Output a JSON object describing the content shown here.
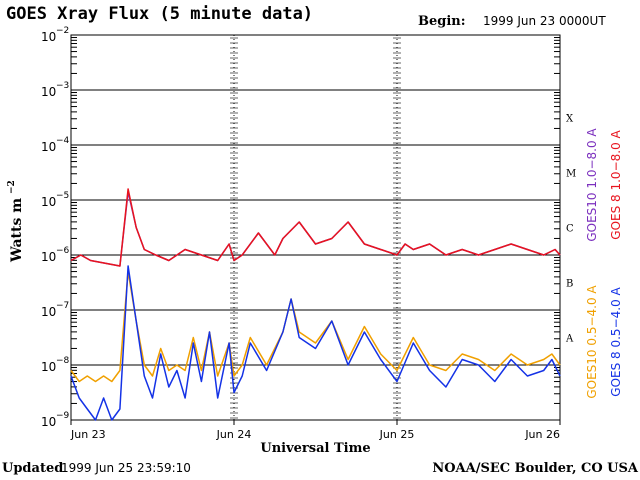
{
  "header": {
    "title": "GOES Xray Flux (5 minute data)",
    "begin_label": "Begin:",
    "begin_value": "1999 Jun 23 0000UT"
  },
  "footer": {
    "updated_label": "Updated",
    "updated_value": "1999 Jun 25 23:59:10",
    "credit": "NOAA/SEC Boulder, CO USA"
  },
  "colors": {
    "goes10_long": "#7b2fbe",
    "goes8_long": "#e8141e",
    "goes10_short": "#f0a000",
    "goes8_short": "#1432e6",
    "grid": "#000000"
  },
  "chart_data": {
    "type": "line",
    "y_scale": "log",
    "ylim_exponent": [
      -9,
      -2
    ],
    "y_ticks": [
      {
        "base": "10",
        "exp": "−2"
      },
      {
        "base": "10",
        "exp": "−3"
      },
      {
        "base": "10",
        "exp": "−4"
      },
      {
        "base": "10",
        "exp": "−5"
      },
      {
        "base": "10",
        "exp": "−6"
      },
      {
        "base": "10",
        "exp": "−7"
      },
      {
        "base": "10",
        "exp": "−8"
      },
      {
        "base": "10",
        "exp": "−9"
      }
    ],
    "ylabel": "Watts m",
    "ylabel_exp": "−2",
    "xlabel": "Universal Time",
    "x_ticks": [
      "Jun 23",
      "Jun 24",
      "Jun 25",
      "Jun 26"
    ],
    "x_range_days": [
      0,
      3
    ],
    "flare_classes": [
      "X",
      "M",
      "C",
      "B",
      "A"
    ],
    "legend": [
      {
        "label": "GOES10 1.0−8.0 A",
        "color": "#7b2fbe"
      },
      {
        "label": "GOES 8 1.0−8.0 A",
        "color": "#e8141e"
      },
      {
        "label": "GOES10 0.5−4.0 A",
        "color": "#f0a000"
      },
      {
        "label": "GOES 8 0.5−4.0 A",
        "color": "#1432e6"
      }
    ],
    "series": [
      {
        "name": "GOES 8 1.0−8.0 A",
        "x_days": [
          0,
          0.06,
          0.12,
          0.3,
          0.35,
          0.4,
          0.45,
          0.52,
          0.6,
          0.7,
          0.8,
          0.9,
          0.97,
          1.0,
          1.05,
          1.15,
          1.25,
          1.3,
          1.4,
          1.5,
          1.6,
          1.7,
          1.8,
          1.9,
          2.0,
          2.05,
          2.1,
          2.2,
          2.3,
          2.4,
          2.5,
          2.6,
          2.7,
          2.8,
          2.9,
          2.97,
          3.0
        ],
        "y_log": [
          -6.1,
          -6.0,
          -6.1,
          -6.2,
          -4.8,
          -5.5,
          -5.9,
          -6.0,
          -6.1,
          -5.9,
          -6.0,
          -6.1,
          -5.8,
          -6.1,
          -6.0,
          -5.6,
          -6.0,
          -5.7,
          -5.4,
          -5.8,
          -5.7,
          -5.4,
          -5.8,
          -5.9,
          -6.0,
          -5.8,
          -5.9,
          -5.8,
          -6.0,
          -5.9,
          -6.0,
          -5.9,
          -5.8,
          -5.9,
          -6.0,
          -5.9,
          -6.0
        ]
      },
      {
        "name": "GOES10 1.0−8.0 A",
        "x_days": [
          0,
          0.06,
          0.12,
          0.3,
          0.35,
          0.4,
          0.45,
          0.52,
          0.6,
          0.7,
          0.8,
          0.9,
          0.97,
          1.0,
          1.05,
          1.15,
          1.25,
          1.3,
          1.4,
          1.5,
          1.6,
          1.7,
          1.8,
          1.9,
          2.0,
          2.05,
          2.1,
          2.2,
          2.3,
          2.4,
          2.5,
          2.6,
          2.7,
          2.8,
          2.9,
          2.97,
          3.0
        ],
        "y_log": [
          -6.1,
          -6.0,
          -6.1,
          -6.2,
          -4.85,
          -5.5,
          -5.9,
          -6.0,
          -6.1,
          -5.9,
          -6.0,
          -6.1,
          -5.8,
          -6.1,
          -6.0,
          -5.6,
          -6.0,
          -5.7,
          -5.4,
          -5.8,
          -5.7,
          -5.4,
          -5.8,
          -5.9,
          -6.0,
          -5.8,
          -5.9,
          -5.8,
          -6.0,
          -5.9,
          -6.0,
          -5.9,
          -5.8,
          -5.9,
          -6.0,
          -5.9,
          -6.0
        ]
      },
      {
        "name": "GOES 8 0.5−4.0 A",
        "x_days": [
          0,
          0.05,
          0.1,
          0.15,
          0.2,
          0.25,
          0.3,
          0.35,
          0.4,
          0.45,
          0.5,
          0.55,
          0.6,
          0.65,
          0.7,
          0.75,
          0.8,
          0.85,
          0.9,
          0.97,
          1.0,
          1.05,
          1.1,
          1.2,
          1.3,
          1.35,
          1.4,
          1.5,
          1.6,
          1.7,
          1.8,
          1.9,
          2.0,
          2.1,
          2.2,
          2.3,
          2.4,
          2.5,
          2.6,
          2.7,
          2.8,
          2.9,
          2.95,
          3.0
        ],
        "y_log": [
          -8.2,
          -8.6,
          -8.8,
          -9.0,
          -8.6,
          -9.0,
          -8.8,
          -6.2,
          -7.2,
          -8.2,
          -8.6,
          -7.8,
          -8.4,
          -8.1,
          -8.6,
          -7.6,
          -8.3,
          -7.4,
          -8.6,
          -7.6,
          -8.5,
          -8.2,
          -7.6,
          -8.1,
          -7.4,
          -6.8,
          -7.5,
          -7.7,
          -7.2,
          -8.0,
          -7.4,
          -7.9,
          -8.3,
          -7.6,
          -8.1,
          -8.4,
          -7.9,
          -8.0,
          -8.3,
          -7.9,
          -8.2,
          -8.1,
          -7.9,
          -8.2
        ]
      },
      {
        "name": "GOES10 0.5−4.0 A",
        "x_days": [
          0,
          0.05,
          0.1,
          0.15,
          0.2,
          0.25,
          0.3,
          0.35,
          0.4,
          0.45,
          0.5,
          0.55,
          0.6,
          0.65,
          0.7,
          0.75,
          0.8,
          0.85,
          0.9,
          0.97,
          1.0,
          1.05,
          1.1,
          1.2,
          1.3,
          1.35,
          1.4,
          1.5,
          1.6,
          1.7,
          1.8,
          1.9,
          2.0,
          2.1,
          2.2,
          2.3,
          2.4,
          2.5,
          2.6,
          2.7,
          2.8,
          2.9,
          2.95,
          3.0
        ],
        "y_log": [
          -8.1,
          -8.3,
          -8.2,
          -8.3,
          -8.2,
          -8.3,
          -8.1,
          -6.3,
          -7.2,
          -8.0,
          -8.2,
          -7.7,
          -8.1,
          -8.0,
          -8.1,
          -7.5,
          -8.1,
          -7.4,
          -8.2,
          -7.6,
          -8.2,
          -8.0,
          -7.5,
          -8.0,
          -7.4,
          -6.8,
          -7.4,
          -7.6,
          -7.2,
          -7.9,
          -7.3,
          -7.8,
          -8.1,
          -7.5,
          -8.0,
          -8.1,
          -7.8,
          -7.9,
          -8.1,
          -7.8,
          -8.0,
          -7.9,
          -7.8,
          -8.0
        ]
      }
    ]
  }
}
